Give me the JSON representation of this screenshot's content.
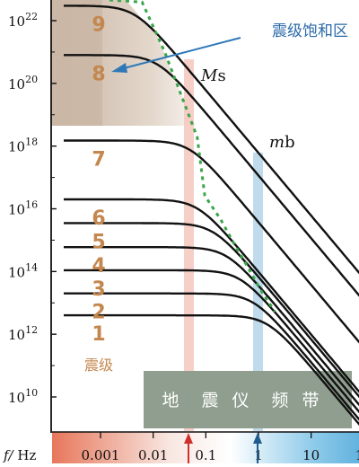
{
  "chart_data": {
    "type": "line",
    "xlabel": "f/ Hz",
    "x_scale": "log",
    "y_scale": "log",
    "xlim": [
      0.0002,
      100
    ],
    "ylim": [
      3000000000.0,
      1e+23
    ],
    "x_ticks": [
      "0.001",
      "0.01",
      "0.1",
      "1",
      "10",
      "10"
    ],
    "y_ticks": [
      {
        "base": "10",
        "exp": "22"
      },
      {
        "base": "10",
        "exp": "20"
      },
      {
        "base": "10",
        "exp": "18"
      },
      {
        "base": "10",
        "exp": "16"
      },
      {
        "base": "10",
        "exp": "14"
      },
      {
        "base": "10",
        "exp": "12"
      },
      {
        "base": "10",
        "exp": "10"
      }
    ],
    "series": [
      {
        "name": "1",
        "plateau": 4000000000000.0,
        "corner": 1.5,
        "labelStrip": false
      },
      {
        "name": "2",
        "plateau": 20000000000000.0,
        "corner": 0.8,
        "labelStrip": false
      },
      {
        "name": "3",
        "plateau": 110000000000000.0,
        "corner": 0.45,
        "labelStrip": false
      },
      {
        "name": "4",
        "plateau": 600000000000000.0,
        "corner": 0.25,
        "labelStrip": false
      },
      {
        "name": "5",
        "plateau": 3500000000000000.0,
        "corner": 0.14,
        "labelStrip": false
      },
      {
        "name": "6",
        "plateau": 2e+16,
        "corner": 0.07,
        "labelStrip": false
      },
      {
        "name": "7",
        "plateau": 1.5e+18,
        "corner": 0.05,
        "labelStrip": true
      },
      {
        "name": "8",
        "plateau": 8e+20,
        "corner": 0.012,
        "labelStrip": true
      },
      {
        "name": "9",
        "plateau": 3e+22,
        "corner": 0.0045,
        "labelStrip": true
      }
    ],
    "annotations": {
      "saturation_label": "震级饱和区",
      "ms_label": {
        "italic": "M",
        "rest": "s"
      },
      "mb_label": {
        "italic": "m",
        "rest": "b"
      },
      "magnitude_label": "震级",
      "instrument_band": [
        "地",
        "震",
        "仪",
        "频",
        "带"
      ]
    },
    "colors": {
      "curve": "#111111",
      "dotted": "#3aa54a",
      "magnitude_text": "#c4874e",
      "ms_band": "#f4c7bd",
      "mb_band": "#b9d7ea",
      "instrument_box": "#8f9e8e",
      "arrow": "#2f78b8",
      "marker_red": "#d0302a",
      "marker_blue": "#1f5b8c"
    }
  }
}
